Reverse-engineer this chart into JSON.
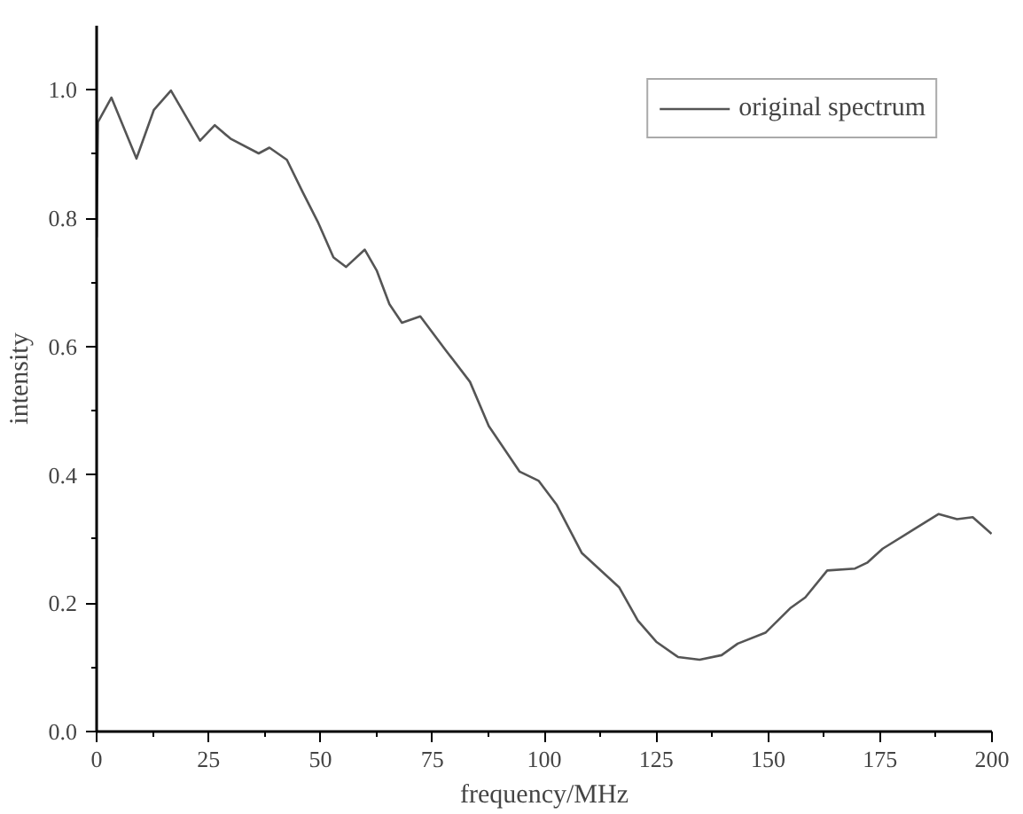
{
  "chart_data": {
    "type": "line",
    "xlabel": "frequency/MHz",
    "ylabel": "intensity",
    "xlim": [
      0,
      200
    ],
    "ylim": [
      0,
      1.1
    ],
    "xticks": [
      0,
      25,
      50,
      75,
      100,
      125,
      150,
      175,
      200
    ],
    "yticks": [
      {
        "value": 0,
        "label": "0.0"
      },
      {
        "value": 0.2,
        "label": "0.2"
      },
      {
        "value": 0.4,
        "label": "0.4"
      },
      {
        "value": 0.6,
        "label": "0.6"
      },
      {
        "value": 0.8,
        "label": "0.8"
      },
      {
        "value": 1.0,
        "label": "1.0"
      }
    ],
    "grid": false,
    "legend": "top right",
    "marker": "none",
    "line_style": "solid",
    "series": [
      {
        "name": "original spectrum",
        "color": "#555555",
        "x": [
          0,
          0.3,
          3.3,
          8.9,
          12.8,
          16.6,
          23.1,
          26.4,
          29.9,
          36.2,
          38.6,
          42.5,
          46,
          49.5,
          52.9,
          55.7,
          59.9,
          62.6,
          65.4,
          68.2,
          72.3,
          77.9,
          83.4,
          87.6,
          94.5,
          98.7,
          102.8,
          108.4,
          116.7,
          120.9,
          125,
          129.9,
          134.7,
          139.6,
          143.2,
          149.4,
          154.9,
          158.3,
          163.2,
          169.4,
          172.1,
          175.6,
          182.5,
          188.1,
          192.2,
          195.7,
          199.9
        ],
        "values": [
          0.77,
          0.95,
          0.988,
          0.893,
          0.969,
          0.999,
          0.921,
          0.945,
          0.924,
          0.901,
          0.91,
          0.891,
          0.841,
          0.793,
          0.739,
          0.724,
          0.751,
          0.718,
          0.666,
          0.637,
          0.647,
          0.595,
          0.545,
          0.476,
          0.405,
          0.391,
          0.353,
          0.278,
          0.225,
          0.173,
          0.14,
          0.116,
          0.112,
          0.119,
          0.137,
          0.154,
          0.192,
          0.209,
          0.251,
          0.254,
          0.263,
          0.285,
          0.315,
          0.339,
          0.331,
          0.334,
          0.308
        ]
      }
    ]
  }
}
